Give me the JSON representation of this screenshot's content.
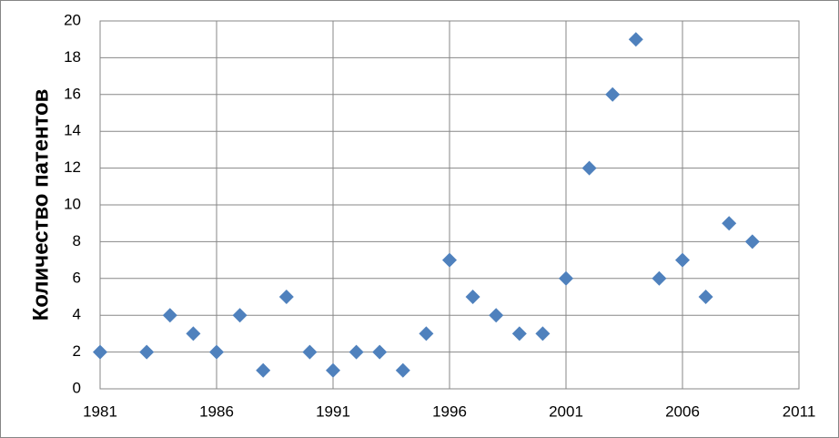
{
  "chart_data": {
    "type": "scatter",
    "y_label": "Количество патентов",
    "x": [
      1981,
      1983,
      1984,
      1985,
      1986,
      1987,
      1988,
      1989,
      1990,
      1991,
      1992,
      1993,
      1994,
      1995,
      1996,
      1997,
      1998,
      1999,
      2000,
      2001,
      2002,
      2003,
      2004,
      2005,
      2006,
      2007,
      2008,
      2009
    ],
    "values": [
      2,
      2,
      4,
      3,
      2,
      4,
      1,
      5,
      2,
      1,
      2,
      2,
      1,
      3,
      7,
      5,
      4,
      3,
      3,
      6,
      12,
      16,
      19,
      6,
      7,
      5,
      9,
      8
    ],
    "color": "#4f81bd",
    "xlim": [
      1981,
      2011
    ],
    "xticks": [
      1981,
      1986,
      1991,
      1996,
      2001,
      2006,
      2011
    ],
    "ylim": [
      0,
      20
    ],
    "yticks": [
      0,
      2,
      4,
      6,
      8,
      10,
      12,
      14,
      16,
      18,
      20
    ],
    "grid": true
  }
}
